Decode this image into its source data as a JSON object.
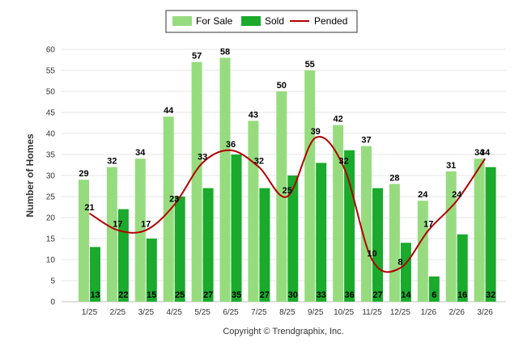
{
  "chart_data": {
    "type": "bar",
    "categories": [
      "1/25",
      "2/25",
      "3/25",
      "4/25",
      "5/25",
      "6/25",
      "7/25",
      "8/25",
      "9/25",
      "10/25",
      "11/25",
      "12/25",
      "1/26",
      "2/26",
      "3/26"
    ],
    "series": [
      {
        "name": "For Sale",
        "type": "bar",
        "color": "#96dc7f",
        "values": [
          29,
          32,
          34,
          44,
          57,
          58,
          43,
          50,
          55,
          42,
          37,
          28,
          24,
          31,
          34
        ]
      },
      {
        "name": "Sold",
        "type": "bar",
        "color": "#1aaa2c",
        "values": [
          13,
          22,
          15,
          25,
          27,
          35,
          27,
          30,
          33,
          36,
          27,
          14,
          6,
          16,
          32
        ]
      },
      {
        "name": "Pended",
        "type": "line",
        "color": "#b30000",
        "values": [
          21,
          17,
          17,
          23,
          33,
          36,
          32,
          25,
          39,
          32,
          10,
          8,
          17,
          24,
          34
        ]
      }
    ],
    "ylabel": "Number of Homes",
    "xlabel": "",
    "ylim": [
      0,
      60
    ],
    "yticks": [
      0,
      5,
      10,
      15,
      20,
      25,
      30,
      35,
      40,
      45,
      50,
      55,
      60
    ],
    "grid": true,
    "legend_position": "top-center",
    "footer": "Copyright © Trendgraphix, Inc."
  }
}
